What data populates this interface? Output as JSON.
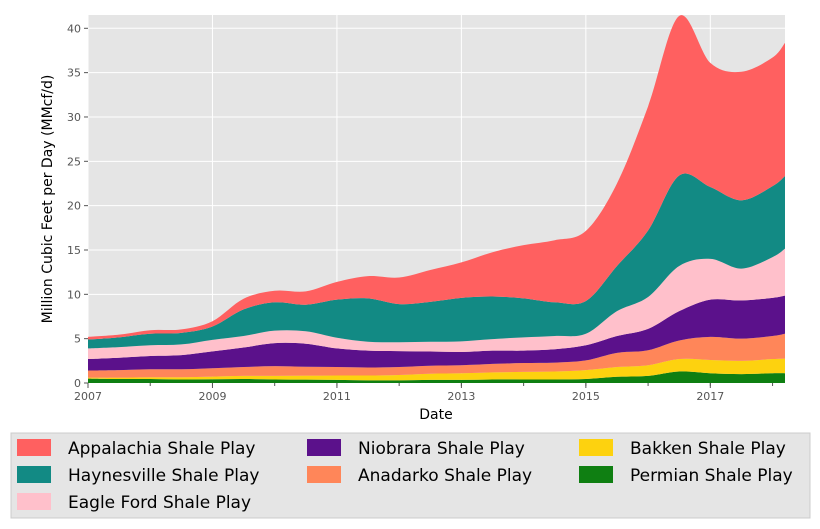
{
  "chart_data": {
    "type": "area",
    "stacked": true,
    "xlabel": "Date",
    "ylabel": "Million Cubic Feet per Day (MMcf/d)",
    "xlim": [
      2007,
      2018.2
    ],
    "ylim": [
      0,
      41.5
    ],
    "x_ticks": [
      "2007",
      "2009",
      "2011",
      "2013",
      "2015",
      "2017"
    ],
    "y_ticks": [
      "0",
      "5",
      "10",
      "15",
      "20",
      "25",
      "30",
      "35",
      "40"
    ],
    "grid": true,
    "legend_position": "bottom",
    "x": [
      2007,
      2007.5,
      2008,
      2008.5,
      2009,
      2009.5,
      2010,
      2010.5,
      2011,
      2011.5,
      2012,
      2012.5,
      2013,
      2013.5,
      2014,
      2014.5,
      2015,
      2015.5,
      2016,
      2016.5,
      2017,
      2017.5,
      2018,
      2018.2
    ],
    "series": [
      {
        "name": "Permian Shale Play",
        "color": "#0f7f12",
        "values": [
          0.5,
          0.45,
          0.45,
          0.4,
          0.42,
          0.45,
          0.4,
          0.38,
          0.35,
          0.3,
          0.3,
          0.35,
          0.35,
          0.4,
          0.4,
          0.4,
          0.45,
          0.7,
          0.8,
          1.3,
          1.1,
          1.0,
          1.1,
          1.1
        ]
      },
      {
        "name": "Bakken Shale Play",
        "color": "#fdd20f",
        "values": [
          0.1,
          0.15,
          0.2,
          0.25,
          0.3,
          0.35,
          0.4,
          0.45,
          0.5,
          0.55,
          0.6,
          0.7,
          0.75,
          0.8,
          0.85,
          0.9,
          1.0,
          1.1,
          1.2,
          1.4,
          1.5,
          1.5,
          1.6,
          1.65
        ]
      },
      {
        "name": "Anadarko Shale Play",
        "color": "#ff8659",
        "values": [
          0.8,
          0.85,
          0.9,
          0.9,
          0.95,
          1.0,
          1.1,
          1.0,
          0.95,
          0.9,
          0.9,
          0.9,
          0.9,
          0.95,
          1.0,
          1.0,
          1.1,
          1.6,
          1.7,
          2.1,
          2.6,
          2.5,
          2.6,
          2.8
        ]
      },
      {
        "name": "Niobrara Shale Play",
        "color": "#5b118b",
        "values": [
          1.3,
          1.4,
          1.5,
          1.6,
          1.9,
          2.2,
          2.6,
          2.6,
          2.1,
          1.9,
          1.8,
          1.6,
          1.5,
          1.5,
          1.4,
          1.5,
          1.7,
          1.9,
          2.4,
          3.3,
          4.2,
          4.3,
          4.3,
          4.3
        ]
      },
      {
        "name": "Eagle Ford Shale Play",
        "color": "#ffc0cb",
        "values": [
          1.2,
          1.2,
          1.2,
          1.2,
          1.3,
          1.3,
          1.4,
          1.4,
          1.2,
          1.0,
          1.0,
          1.1,
          1.2,
          1.3,
          1.5,
          1.5,
          1.3,
          2.8,
          3.6,
          5.1,
          4.6,
          3.6,
          4.6,
          5.3
        ]
      },
      {
        "name": "Haynesville Shale Play",
        "color": "#128a84",
        "values": [
          1.0,
          1.1,
          1.3,
          1.3,
          1.5,
          3.0,
          3.2,
          3.0,
          4.3,
          4.9,
          4.3,
          4.5,
          4.9,
          4.8,
          4.4,
          3.8,
          3.7,
          5.1,
          7.5,
          10.2,
          8.1,
          7.7,
          8.0,
          8.2
        ]
      },
      {
        "name": "Appalachia Shale Play",
        "color": "#ff6060",
        "values": [
          0.3,
          0.3,
          0.4,
          0.4,
          0.6,
          1.2,
          1.3,
          1.5,
          2.0,
          2.5,
          3.0,
          3.6,
          4.0,
          5.0,
          6.0,
          7.0,
          7.9,
          9.3,
          14.0,
          18.0,
          14.0,
          14.5,
          14.5,
          15.0
        ]
      }
    ],
    "legend_order": [
      "Appalachia Shale Play",
      "Niobrara Shale Play",
      "Bakken Shale Play",
      "Haynesville Shale Play",
      "Anadarko Shale Play",
      "Permian Shale Play",
      "Eagle Ford Shale Play"
    ]
  }
}
